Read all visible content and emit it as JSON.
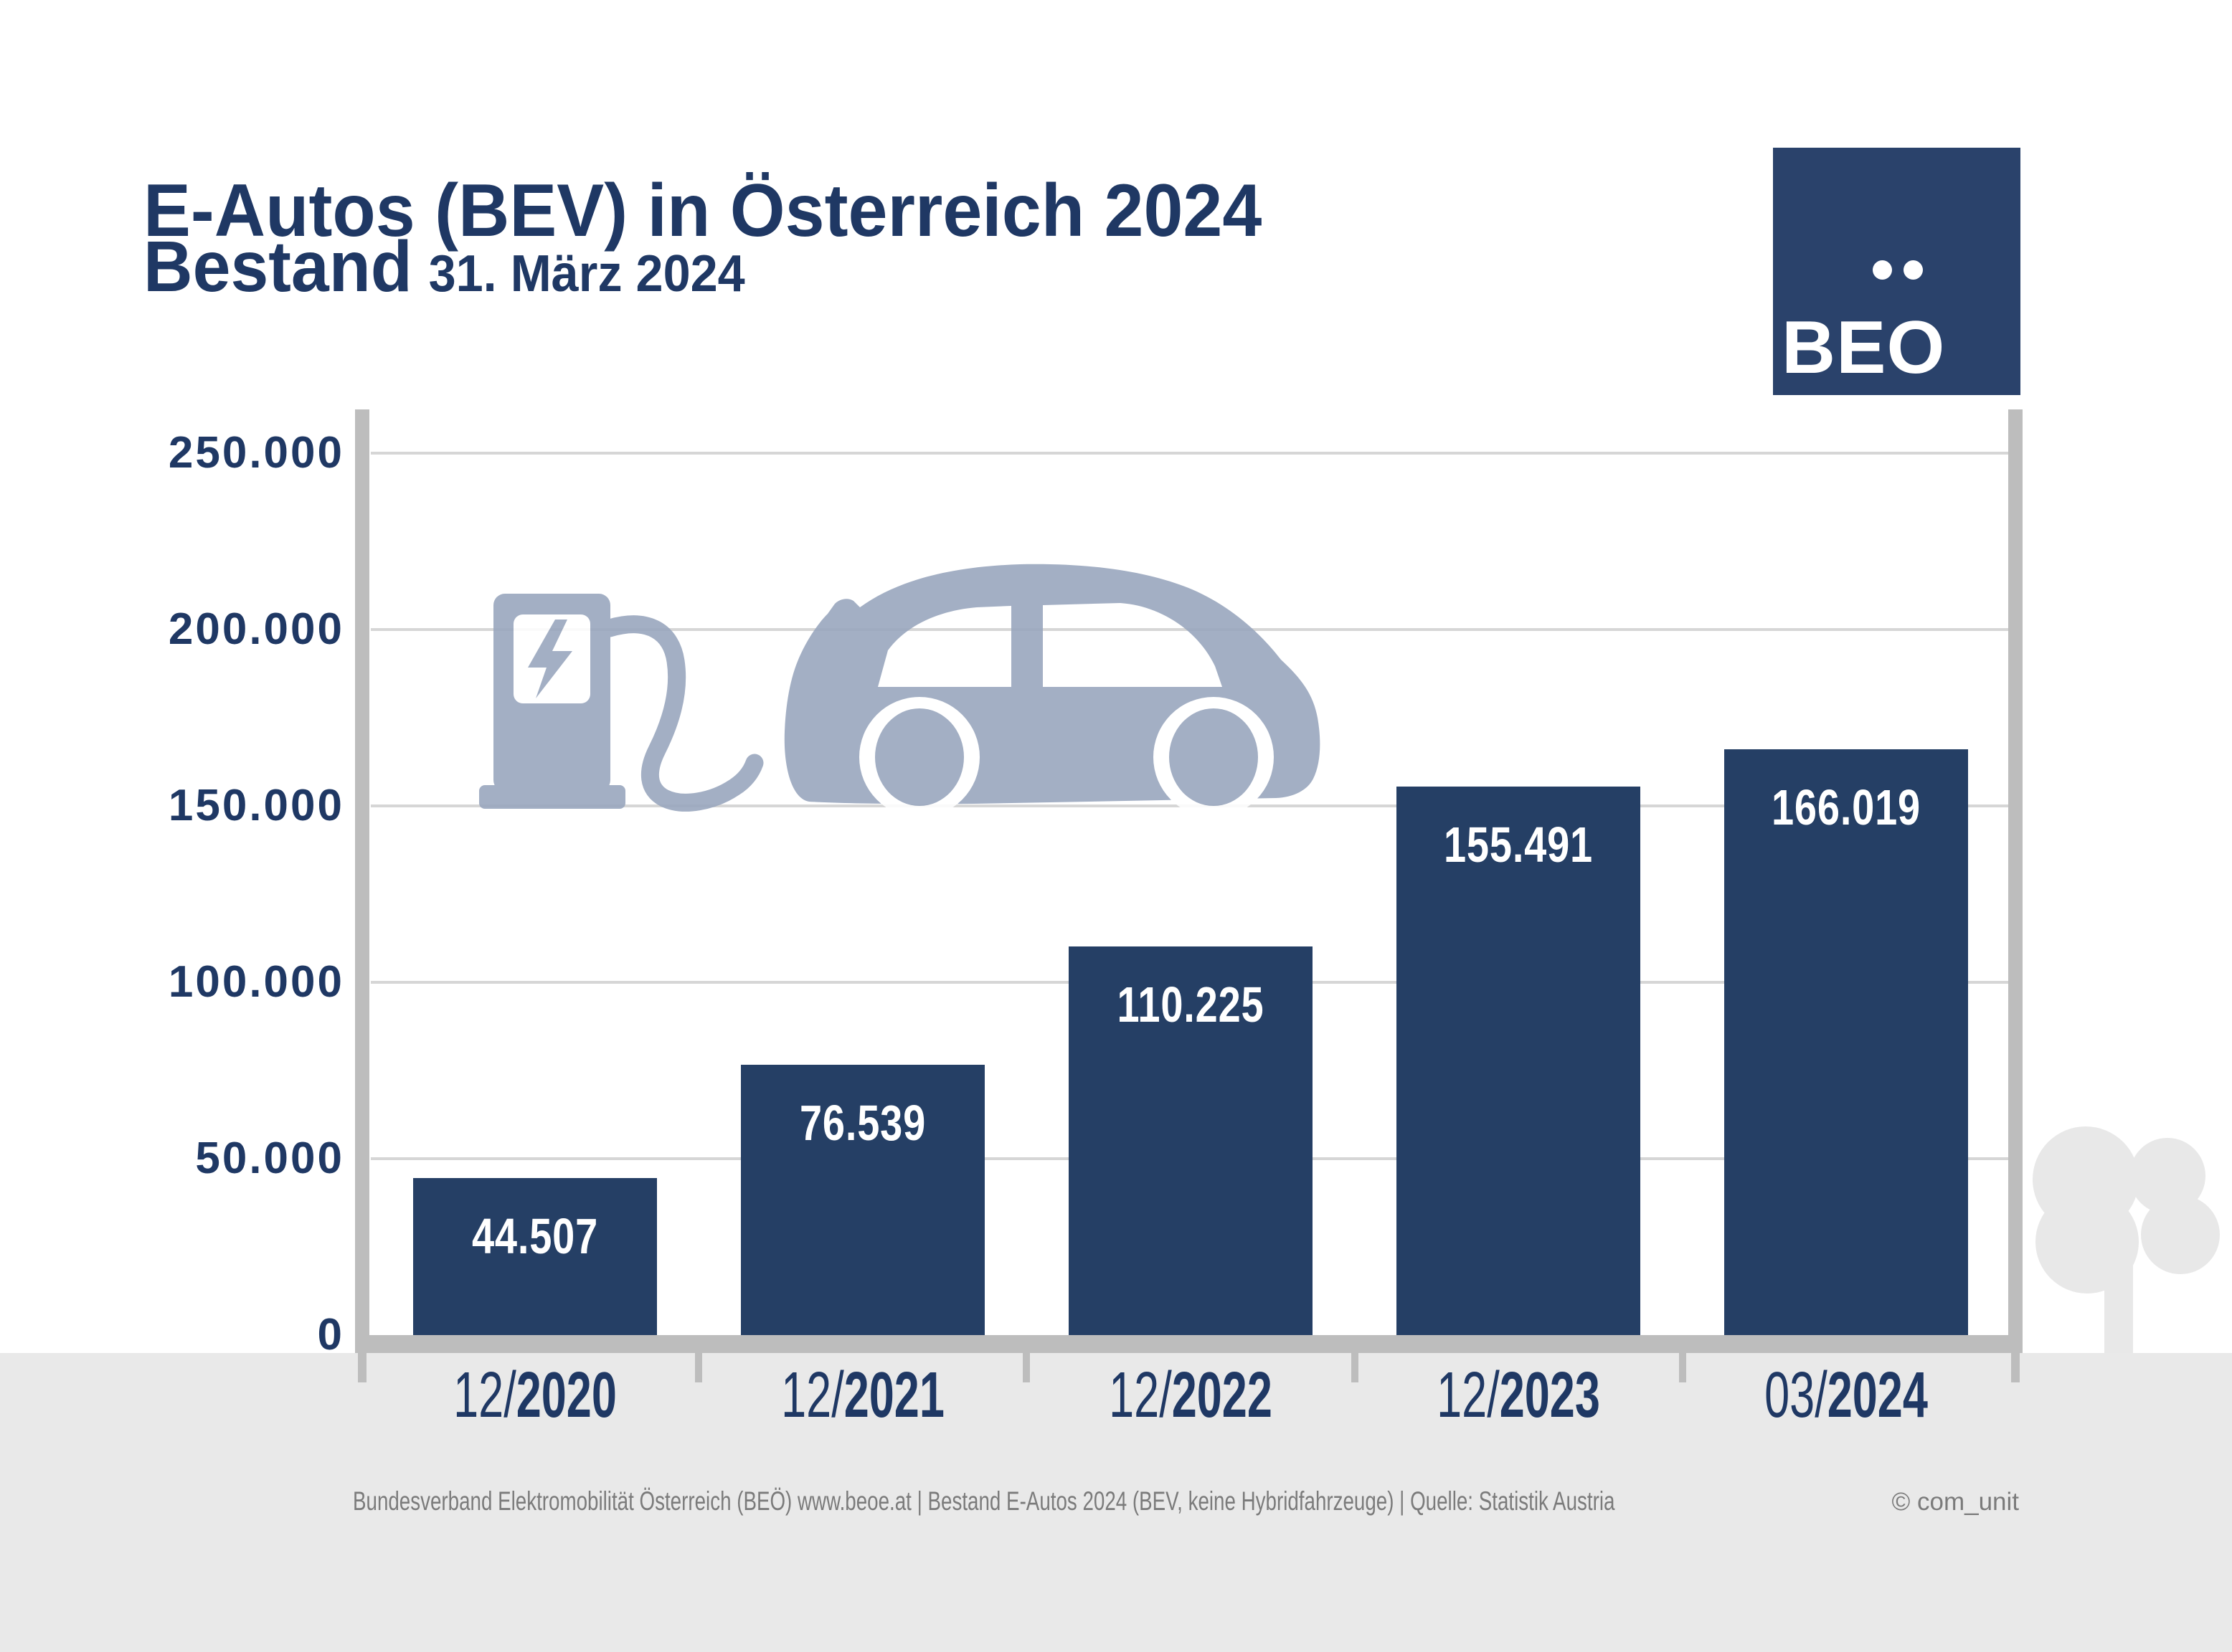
{
  "header": {
    "title": "E-Autos (BEV) in Österreich 2024",
    "subtitle_lead": "Bestand",
    "subtitle_date": "31. März 2024"
  },
  "logo": {
    "text": "BEO",
    "umlaut_dots": 2
  },
  "icons": {
    "charging_station": "charging-station-icon",
    "lightning_bolt": "lightning-bolt-icon",
    "electric_car": "electric-car-icon",
    "tree": "tree-icon",
    "umlaut_dots": "umlaut-dots-icon"
  },
  "chart_data": {
    "type": "bar",
    "title": "E-Autos (BEV) in Österreich 2024",
    "subtitle": "Bestand 31. März 2024",
    "categories": [
      "12/2020",
      "12/2021",
      "12/2022",
      "12/2023",
      "03/2024"
    ],
    "values": [
      44507,
      76539,
      110225,
      155491,
      166019
    ],
    "value_labels": [
      "44.507",
      "76.539",
      "110.225",
      "155.491",
      "166.019"
    ],
    "x_tick_parts": [
      {
        "month": "12/",
        "year": "2020"
      },
      {
        "month": "12/",
        "year": "2021"
      },
      {
        "month": "12/",
        "year": "2022"
      },
      {
        "month": "12/",
        "year": "2023"
      },
      {
        "month": "03/",
        "year": "2024"
      }
    ],
    "y_axis": {
      "max": 250000,
      "ticks": [
        {
          "label": "250.000",
          "value": 250000
        },
        {
          "label": "200.000",
          "value": 200000
        },
        {
          "label": "150.000",
          "value": 150000
        },
        {
          "label": "100.000",
          "value": 100000
        },
        {
          "label": "50.000",
          "value": 50000
        },
        {
          "label": "0",
          "value": 0
        }
      ]
    },
    "ylim": [
      0,
      250000
    ],
    "grid": true,
    "legend": false,
    "xlabel": "",
    "ylabel": ""
  },
  "footer": {
    "source_line": "Bundesverband Elektromobilität Österreich (BEÖ) www.beoe.at | Bestand E-Autos 2024 (BEV, keine Hybridfahrzeuge) | Quelle: Statistik Austria",
    "credit": "© com_unit"
  },
  "colors": {
    "navy_text": "#1F3864",
    "bar": "#253F65",
    "logo_bg": "#2A426B",
    "axis": "#BDBDBD",
    "gridline": "#D6D6D6",
    "band": "#E9E9E9",
    "footer_text": "#7B7B7B",
    "illustration": "#9AA7BE",
    "tree": "#E8E8E8"
  }
}
